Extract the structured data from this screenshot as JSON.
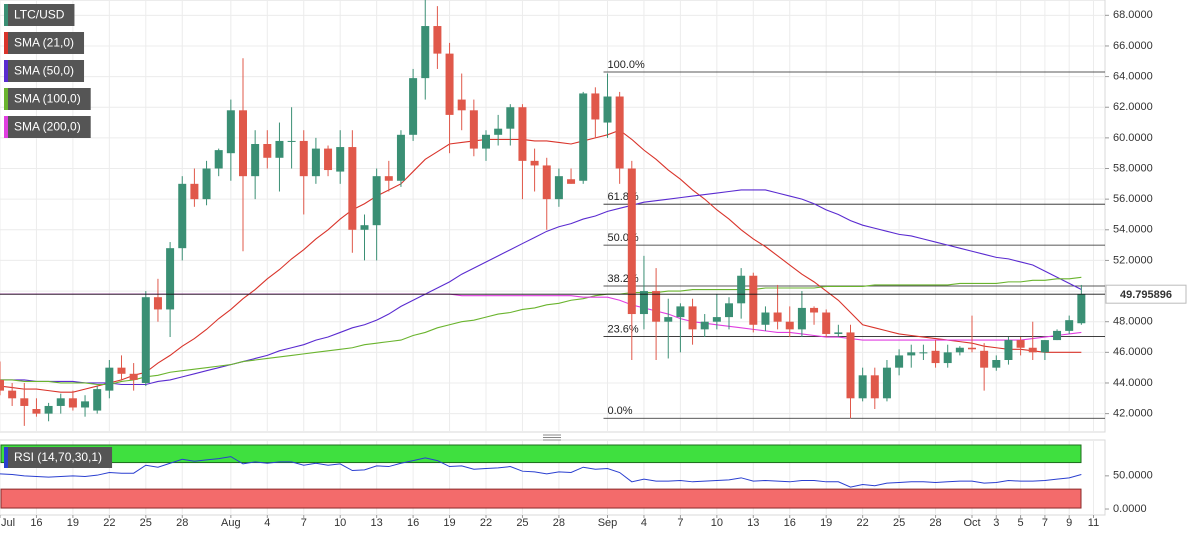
{
  "chart_data": [
    {
      "type": "candlestick",
      "categories": [
        "Jul",
        null,
        null,
        "16",
        null,
        null,
        "19",
        null,
        null,
        "22",
        null,
        null,
        "25",
        null,
        null,
        "28",
        null,
        null,
        null,
        "Aug",
        null,
        null,
        "4",
        null,
        null,
        "7",
        null,
        null,
        "10",
        null,
        null,
        "13",
        null,
        null,
        "16",
        null,
        null,
        "19",
        null,
        null,
        "22",
        null,
        null,
        "25",
        null,
        null,
        "28",
        null,
        null,
        null,
        "Sep",
        null,
        null,
        "4",
        null,
        null,
        "7",
        null,
        null,
        "10",
        null,
        null,
        "13",
        null,
        null,
        "16",
        null,
        null,
        "19",
        null,
        null,
        "22",
        null,
        null,
        "25",
        null,
        null,
        "28",
        null,
        null,
        "Oct",
        null,
        "3",
        null,
        "5",
        null,
        "7",
        null,
        "9",
        null,
        "11"
      ],
      "ylim": [
        40.8,
        69.0
      ],
      "yticks": [
        {
          "value": 42,
          "label": "42.0000"
        },
        {
          "value": 44,
          "label": "44.0000"
        },
        {
          "value": 46,
          "label": "46.0000"
        },
        {
          "value": 48,
          "label": "48.0000"
        },
        {
          "value": 50,
          "label": "50.0000"
        },
        {
          "value": 52,
          "label": "52.0000"
        },
        {
          "value": 54,
          "label": "54.0000"
        },
        {
          "value": 56,
          "label": "56.0000"
        },
        {
          "value": 58,
          "label": "58.0000"
        },
        {
          "value": 60,
          "label": "60.0000"
        },
        {
          "value": 62,
          "label": "62.0000"
        },
        {
          "value": 64,
          "label": "64.0000"
        },
        {
          "value": 66,
          "label": "66.0000"
        },
        {
          "value": 68,
          "label": "68.0000"
        }
      ],
      "grid": true,
      "series": [
        {
          "name": "LTC/USD",
          "up_color": "#3a8f74",
          "down_color": "#e0584a",
          "open": [
            44.2,
            43.5,
            43,
            42.3,
            42,
            42.5,
            43,
            42.4,
            42.2,
            43.5,
            45,
            44.6,
            44,
            49.6,
            48.8,
            52.8,
            57,
            56,
            58,
            59,
            61.8,
            57.5,
            59.6,
            58.7,
            59.8,
            59.8,
            57.5,
            59.3,
            57.8,
            59.4,
            54,
            54.3,
            57.5,
            57.2,
            60.2,
            63.9,
            67.3,
            65.5,
            62.5,
            61.8,
            59.3,
            60.2,
            60.6,
            62,
            58.5,
            58.2,
            56,
            57.3,
            57.2,
            62.9,
            61,
            62.7,
            58,
            48.5,
            50,
            48,
            48.3,
            49,
            47.5,
            48,
            48.3,
            49.2,
            51,
            47.8,
            48.6,
            48,
            47.5,
            48.9,
            48.6,
            47.2,
            47.3,
            43,
            44.5,
            43,
            45,
            45.8,
            46,
            46.1,
            45.3,
            46,
            46.3,
            46.1,
            45,
            45.5,
            46.8,
            46.3,
            46,
            46.8,
            47.4,
            47.9,
            null
          ],
          "high": [
            45.4,
            44,
            44,
            43,
            42.7,
            43.3,
            43.5,
            43.2,
            43.8,
            45.5,
            45.8,
            45.3,
            50,
            50.8,
            53.2,
            57.5,
            58,
            58.5,
            59.3,
            62.5,
            65.2,
            60.5,
            60.5,
            61,
            62,
            60.5,
            60,
            59.5,
            60.5,
            60.5,
            55,
            58,
            58.5,
            60.5,
            64.5,
            69,
            68.6,
            66.2,
            64.2,
            62.5,
            60.5,
            61.5,
            62.2,
            62.2,
            59.3,
            58.7,
            58,
            58,
            63,
            63.3,
            64.2,
            63,
            58.5,
            52.3,
            51.5,
            49.5,
            49.2,
            49.5,
            48.5,
            49.8,
            49.6,
            51.5,
            51.2,
            49,
            50.4,
            49,
            50,
            49,
            48.8,
            47.8,
            47.8,
            45,
            45,
            45.5,
            46.2,
            46.5,
            46.5,
            46.8,
            46.5,
            46.4,
            48.4,
            46.6,
            45.8,
            47,
            47,
            48,
            46.8,
            47.5,
            48.4,
            50.4,
            null
          ],
          "low": [
            43.2,
            42.5,
            41.2,
            41.8,
            41.5,
            42,
            42.2,
            41.8,
            42,
            43,
            44.2,
            43.5,
            43.8,
            48,
            47,
            52,
            55.5,
            55.6,
            57.5,
            57.2,
            52.6,
            56,
            58,
            56.5,
            58,
            55,
            57,
            57.5,
            57,
            52.5,
            52,
            52,
            56.5,
            56.8,
            59.8,
            62.5,
            64.5,
            59,
            60.5,
            58.8,
            58.5,
            59.5,
            59.5,
            56,
            56.5,
            54,
            55.5,
            57,
            57,
            60,
            60,
            57,
            45.5,
            47.5,
            45.5,
            45.6,
            46,
            46.5,
            47,
            47.5,
            47.5,
            48.2,
            47.3,
            47.4,
            47.5,
            47,
            47,
            47.8,
            47,
            47,
            41.7,
            42.8,
            42.3,
            42.8,
            44.5,
            45,
            45.5,
            45,
            45,
            45.8,
            46,
            43.5,
            44.8,
            45.2,
            45.8,
            45.5,
            45.5,
            46.8,
            47.2,
            47.8,
            null
          ],
          "close": [
            43.5,
            43,
            42.5,
            42,
            42.5,
            43,
            42.4,
            42.8,
            43.6,
            45,
            44.6,
            44.2,
            49.6,
            48.8,
            52.8,
            57,
            56,
            58,
            59.2,
            61.8,
            57.5,
            59.6,
            58.7,
            59.8,
            59.8,
            57.5,
            59.3,
            57.9,
            59.4,
            54,
            54.3,
            57.5,
            57.2,
            60.2,
            63.9,
            67.3,
            65.5,
            61.5,
            61.8,
            59.3,
            60.2,
            60.6,
            62,
            58.5,
            58.2,
            56,
            57.5,
            57,
            62.9,
            61.2,
            62.7,
            58,
            48.5,
            50,
            48,
            48.3,
            49,
            47.5,
            48,
            48.3,
            49.2,
            51,
            47.8,
            48.6,
            48,
            47.5,
            48.9,
            48.6,
            47.2,
            47.3,
            43,
            44.5,
            43,
            45,
            45.8,
            46,
            46,
            45.3,
            46,
            46.3,
            46.2,
            45,
            45.5,
            46.8,
            46.3,
            46,
            46.8,
            47.4,
            48.1,
            49.8,
            null
          ]
        },
        {
          "name": "SMA (21,0)",
          "color": "#d9342b",
          "values": [
            43.8,
            43.7,
            43.6,
            43.6,
            43.5,
            43.4,
            43.4,
            43.6,
            43.8,
            44,
            44.2,
            44.5,
            44.7,
            45.3,
            45.8,
            46.4,
            46.9,
            47.5,
            48.2,
            48.8,
            49.5,
            50.1,
            50.8,
            51.4,
            52.1,
            52.7,
            53.4,
            54,
            54.7,
            55.3,
            55.7,
            56.2,
            56.6,
            57,
            57.8,
            58.6,
            59.1,
            59.6,
            59.7,
            59.8,
            59.9,
            59.9,
            59.9,
            59.9,
            59.8,
            59.8,
            59.7,
            59.6,
            59.8,
            60,
            60.2,
            60.5,
            59.9,
            59.2,
            58.6,
            57.9,
            57.3,
            56.6,
            56,
            55.3,
            54.7,
            54,
            53.4,
            52.9,
            52.3,
            51.7,
            51.1,
            50.6,
            50,
            49.4,
            48.6,
            47.8,
            47.6,
            47.4,
            47.2,
            47.1,
            47,
            46.9,
            46.8,
            46.7,
            46.6,
            46.4,
            46.3,
            46.2,
            46.2,
            46.1,
            46,
            46,
            46,
            46,
            null
          ]
        },
        {
          "name": "SMA (50,0)",
          "color": "#5a2bd0",
          "values": [
            44.2,
            44.2,
            44.2,
            44.1,
            44.1,
            44.1,
            44.1,
            44,
            44,
            44,
            43.9,
            43.9,
            43.9,
            44.1,
            44.2,
            44.4,
            44.6,
            44.8,
            45,
            45.2,
            45.4,
            45.6,
            45.8,
            46.1,
            46.3,
            46.5,
            46.8,
            47,
            47.3,
            47.6,
            47.8,
            48.1,
            48.5,
            49,
            49.4,
            49.8,
            50.2,
            50.6,
            51.1,
            51.5,
            51.9,
            52.3,
            52.7,
            53.1,
            53.5,
            53.9,
            54.2,
            54.4,
            54.7,
            54.9,
            55.2,
            55.4,
            55.6,
            55.8,
            55.9,
            56,
            56.1,
            56.2,
            56.3,
            56.4,
            56.5,
            56.6,
            56.6,
            56.6,
            56.4,
            56.2,
            56,
            55.7,
            55.3,
            55,
            54.6,
            54.3,
            54.1,
            53.9,
            53.7,
            53.6,
            53.4,
            53.2,
            53,
            52.8,
            52.6,
            52.4,
            52.2,
            52.1,
            51.9,
            51.7,
            51.3,
            50.9,
            50.5,
            50.1,
            null
          ]
        },
        {
          "name": "SMA (100,0)",
          "color": "#6ab42e",
          "values": [
            44.2,
            44.2,
            44.1,
            44.1,
            44.1,
            44,
            44,
            44,
            43.9,
            43.9,
            44.1,
            44.2,
            44.4,
            44.5,
            44.7,
            44.8,
            44.9,
            45,
            45.1,
            45.2,
            45.4,
            45.5,
            45.6,
            45.7,
            45.8,
            45.9,
            46,
            46.1,
            46.2,
            46.3,
            46.5,
            46.6,
            46.7,
            46.8,
            47.1,
            47.3,
            47.6,
            47.8,
            48,
            48.1,
            48.3,
            48.5,
            48.6,
            48.8,
            48.9,
            49.1,
            49.2,
            49.4,
            49.5,
            49.7,
            49.8,
            49.8,
            49.9,
            49.9,
            49.9,
            50,
            50,
            50.1,
            50.1,
            50.1,
            50.1,
            50.1,
            50.1,
            50.2,
            50.2,
            50.2,
            50.2,
            50.2,
            50.3,
            50.3,
            50.3,
            50.3,
            50.4,
            50.4,
            50.4,
            50.4,
            50.4,
            50.4,
            50.4,
            50.5,
            50.5,
            50.5,
            50.5,
            50.6,
            50.6,
            50.7,
            50.7,
            50.8,
            50.8,
            50.9,
            null
          ]
        },
        {
          "name": "SMA (200,0)",
          "color": "#e03ee0",
          "values": [
            49.8,
            49.8,
            49.8,
            49.8,
            49.8,
            49.8,
            49.8,
            49.8,
            49.8,
            49.8,
            49.8,
            49.8,
            49.8,
            49.8,
            49.8,
            49.8,
            49.8,
            49.8,
            49.8,
            49.8,
            49.8,
            49.8,
            49.8,
            49.8,
            49.8,
            49.8,
            49.8,
            49.8,
            49.8,
            49.8,
            49.8,
            49.8,
            49.8,
            49.8,
            49.8,
            49.8,
            49.8,
            49.8,
            49.7,
            49.7,
            49.7,
            49.7,
            49.7,
            49.7,
            49.7,
            49.7,
            49.7,
            49.7,
            49.6,
            49.6,
            49.6,
            49.4,
            49.1,
            48.9,
            48.7,
            48.5,
            48.2,
            48,
            47.9,
            47.8,
            47.7,
            47.6,
            47.5,
            47.4,
            47.3,
            47.3,
            47.2,
            47.1,
            47,
            47,
            46.9,
            46.8,
            46.8,
            46.8,
            46.8,
            46.8,
            46.8,
            46.8,
            46.8,
            46.8,
            46.8,
            46.8,
            46.8,
            46.8,
            46.8,
            46.9,
            47,
            47.1,
            47.2,
            47.3,
            null
          ]
        }
      ],
      "fibonacci": [
        {
          "name": "100.0%",
          "price": 64.3
        },
        {
          "name": "61.8%",
          "price": 55.67
        },
        {
          "name": "50.0%",
          "price": 53.0
        },
        {
          "name": "38.2%",
          "price": 50.33
        },
        {
          "name": "23.6%",
          "price": 47.03
        },
        {
          "name": "0.0%",
          "price": 41.7
        }
      ],
      "last_price": 49.795896
    },
    {
      "type": "line",
      "title": "RSI (14,70,30,1)",
      "color": "#2a3fd0",
      "ylim": [
        -9,
        104
      ],
      "yticks": [
        {
          "value": 0,
          "label": "0.0000"
        },
        {
          "value": 50,
          "label": "50.0000"
        }
      ],
      "overbought": 70,
      "oversold": 30,
      "values": [
        53,
        52,
        50,
        49,
        48,
        49,
        50,
        49,
        51,
        55,
        54,
        54,
        66,
        63,
        69,
        75,
        72,
        74,
        76,
        79,
        68,
        71,
        69,
        71,
        71,
        66,
        69,
        66,
        68,
        58,
        59,
        65,
        64,
        69,
        73,
        77,
        73,
        64,
        65,
        60,
        61,
        62,
        64,
        57,
        56,
        53,
        56,
        55,
        63,
        60,
        61,
        55,
        41,
        45,
        42,
        42,
        43,
        41,
        42,
        43,
        44,
        47,
        42,
        43,
        42,
        41,
        43,
        43,
        41,
        41,
        33,
        37,
        35,
        39,
        40,
        41,
        41,
        40,
        41,
        42,
        42,
        39,
        40,
        43,
        42,
        42,
        43,
        45,
        47,
        52,
        null
      ]
    }
  ]
}
